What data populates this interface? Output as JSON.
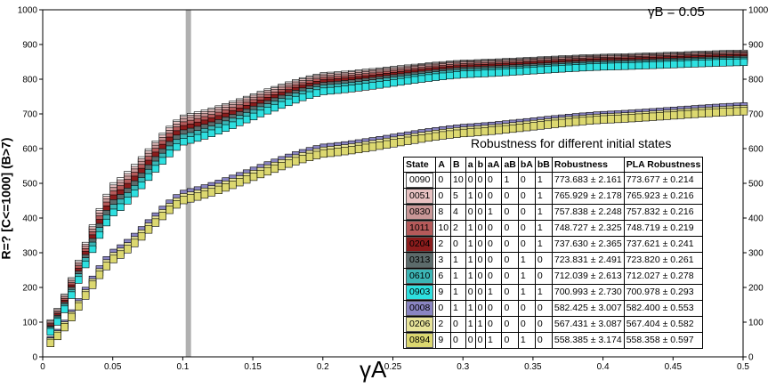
{
  "chart_data": {
    "type": "line",
    "title": "",
    "annotation": "γB = 0.05",
    "xlabel": "γA",
    "ylabel": "R=? [C<=1000] (B>7)",
    "xlim": [
      0,
      0.5
    ],
    "ylim": [
      0,
      1000
    ],
    "x_ticks": [
      "0",
      "0.05",
      "0.1",
      "0.15",
      "0.2",
      "0.25",
      "0.3",
      "0.35",
      "0.4",
      "0.45",
      "0.5"
    ],
    "y_ticks": [
      "0",
      "100",
      "200",
      "300",
      "400",
      "500",
      "600",
      "700",
      "800",
      "900",
      "1000"
    ],
    "highlight_x": 0.104,
    "legend_title": "Robustness for different initial states",
    "legend_headers": [
      "State",
      "A",
      "B",
      "a",
      "b",
      "aA",
      "aB",
      "bA",
      "bB",
      "Robustness",
      "PLA Robustness"
    ],
    "series": [
      {
        "name": "0090",
        "color": "#ffffff",
        "row": [
          "0",
          "10",
          "0",
          "0",
          "0",
          "1",
          "0",
          "1"
        ],
        "robustness": "773.683 ± 2.161",
        "pla": "773.677 ± 0.214",
        "y_at": [
          [
            0.005,
            100
          ],
          [
            0.05,
            495
          ],
          [
            0.1,
            690
          ],
          [
            0.2,
            812
          ],
          [
            0.3,
            848
          ],
          [
            0.4,
            865
          ],
          [
            0.5,
            877
          ]
        ]
      },
      {
        "name": "0051",
        "color": "#e8c2c2",
        "row": [
          "0",
          "5",
          "1",
          "0",
          "0",
          "0",
          "0",
          "1"
        ],
        "robustness": "765.929 ± 2.178",
        "pla": "765.923 ± 0.216",
        "y_at": [
          [
            0.005,
            96
          ],
          [
            0.05,
            488
          ],
          [
            0.1,
            685
          ],
          [
            0.2,
            808
          ],
          [
            0.3,
            845
          ],
          [
            0.4,
            862
          ],
          [
            0.5,
            874
          ]
        ]
      },
      {
        "name": "0830",
        "color": "#c99797",
        "row": [
          "8",
          "4",
          "0",
          "0",
          "1",
          "0",
          "0",
          "1"
        ],
        "robustness": "757.838 ± 2.248",
        "pla": "757.832 ± 0.216",
        "y_at": [
          [
            0.005,
            92
          ],
          [
            0.05,
            480
          ],
          [
            0.1,
            678
          ],
          [
            0.2,
            803
          ],
          [
            0.3,
            842
          ],
          [
            0.4,
            859
          ],
          [
            0.5,
            871
          ]
        ]
      },
      {
        "name": "1011",
        "color": "#b55a5a",
        "row": [
          "10",
          "2",
          "1",
          "0",
          "0",
          "0",
          "0",
          "1"
        ],
        "robustness": "748.727 ± 2.325",
        "pla": "748.719 ± 0.219",
        "y_at": [
          [
            0.005,
            88
          ],
          [
            0.05,
            470
          ],
          [
            0.1,
            669
          ],
          [
            0.2,
            797
          ],
          [
            0.3,
            837
          ],
          [
            0.4,
            855
          ],
          [
            0.5,
            867
          ]
        ]
      },
      {
        "name": "0204",
        "color": "#8b1c1c",
        "row": [
          "2",
          "0",
          "1",
          "0",
          "0",
          "0",
          "0",
          "1"
        ],
        "robustness": "737.630 ± 2.365",
        "pla": "737.621 ± 0.241",
        "y_at": [
          [
            0.005,
            84
          ],
          [
            0.05,
            458
          ],
          [
            0.1,
            658
          ],
          [
            0.2,
            790
          ],
          [
            0.3,
            832
          ],
          [
            0.4,
            851
          ],
          [
            0.5,
            863
          ]
        ]
      },
      {
        "name": "0313",
        "color": "#5c6b6b",
        "row": [
          "3",
          "1",
          "1",
          "0",
          "0",
          "0",
          "1",
          "0"
        ],
        "robustness": "723.831 ± 2.491",
        "pla": "723.820 ± 0.261",
        "y_at": [
          [
            0.005,
            80
          ],
          [
            0.05,
            444
          ],
          [
            0.1,
            645
          ],
          [
            0.2,
            782
          ],
          [
            0.3,
            826
          ],
          [
            0.4,
            846
          ],
          [
            0.5,
            858
          ]
        ]
      },
      {
        "name": "0610",
        "color": "#3cb6b6",
        "row": [
          "6",
          "1",
          "1",
          "0",
          "0",
          "0",
          "1",
          "0"
        ],
        "robustness": "712.039 ± 2.613",
        "pla": "712.027 ± 0.278",
        "y_at": [
          [
            0.005,
            76
          ],
          [
            0.05,
            430
          ],
          [
            0.1,
            632
          ],
          [
            0.2,
            774
          ],
          [
            0.3,
            820
          ],
          [
            0.4,
            841
          ],
          [
            0.5,
            854
          ]
        ]
      },
      {
        "name": "0903",
        "color": "#2ee0e0",
        "row": [
          "9",
          "1",
          "0",
          "0",
          "1",
          "0",
          "1",
          "1"
        ],
        "robustness": "700.993 ± 2.730",
        "pla": "700.978 ± 0.293",
        "y_at": [
          [
            0.005,
            72
          ],
          [
            0.05,
            416
          ],
          [
            0.1,
            620
          ],
          [
            0.2,
            765
          ],
          [
            0.3,
            814
          ],
          [
            0.4,
            836
          ],
          [
            0.5,
            849
          ]
        ]
      },
      {
        "name": "0008",
        "color": "#8a85c2",
        "row": [
          "0",
          "1",
          "1",
          "0",
          "0",
          "0",
          "0",
          "0"
        ],
        "robustness": "582.425 ± 3.007",
        "pla": "582.400 ± 0.553",
        "y_at": [
          [
            0.005,
            48
          ],
          [
            0.05,
            300
          ],
          [
            0.1,
            470
          ],
          [
            0.2,
            603
          ],
          [
            0.3,
            660
          ],
          [
            0.4,
            697
          ],
          [
            0.5,
            722
          ]
        ]
      },
      {
        "name": "0206",
        "color": "#e8e49a",
        "row": [
          "2",
          "0",
          "1",
          "1",
          "0",
          "0",
          "0",
          "0"
        ],
        "robustness": "567.431 ± 3.087",
        "pla": "567.404 ± 0.582",
        "y_at": [
          [
            0.005,
            44
          ],
          [
            0.05,
            290
          ],
          [
            0.1,
            460
          ],
          [
            0.2,
            594
          ],
          [
            0.3,
            652
          ],
          [
            0.4,
            690
          ],
          [
            0.5,
            714
          ]
        ]
      },
      {
        "name": "0894",
        "color": "#dcd870",
        "row": [
          "9",
          "0",
          "0",
          "0",
          "1",
          "0",
          "1",
          "0"
        ],
        "robustness": "558.385 ± 3.174",
        "pla": "558.358 ± 0.597",
        "y_at": [
          [
            0.005,
            40
          ],
          [
            0.05,
            282
          ],
          [
            0.1,
            452
          ],
          [
            0.2,
            586
          ],
          [
            0.3,
            645
          ],
          [
            0.4,
            684
          ],
          [
            0.5,
            708
          ]
        ]
      }
    ]
  }
}
